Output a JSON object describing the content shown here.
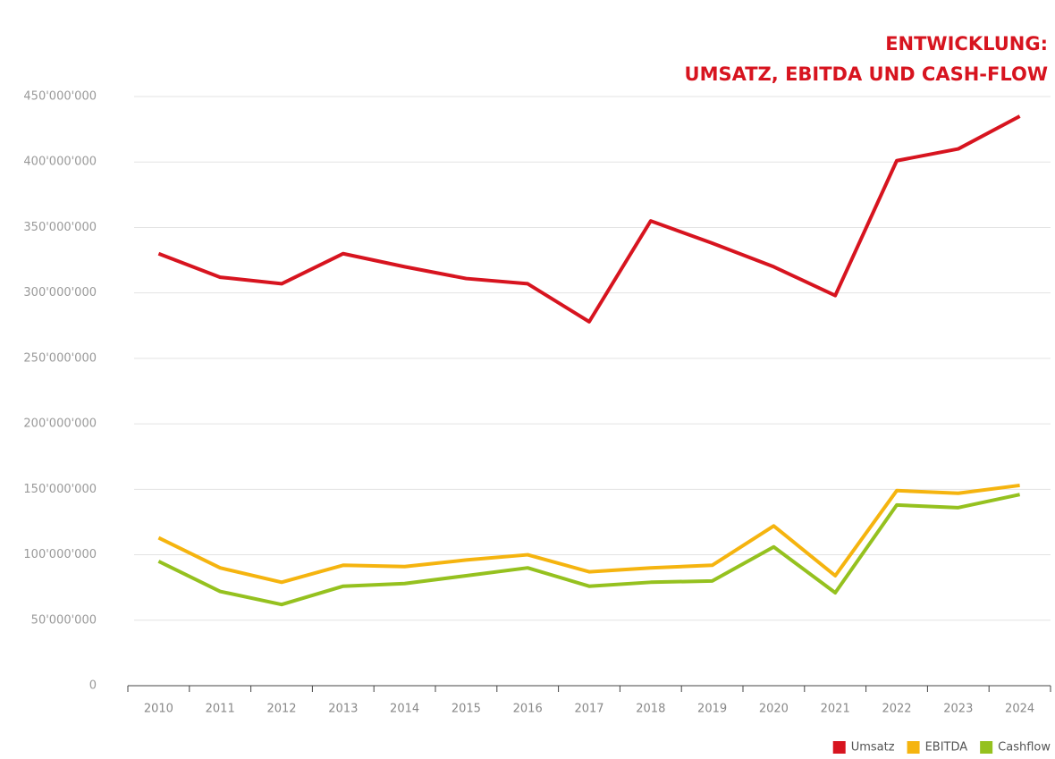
{
  "chart_data": {
    "type": "line",
    "title": [
      "ENTWICKLUNG:",
      "UMSATZ, EBITDA UND CASH-FLOW"
    ],
    "categories": [
      "2010",
      "2011",
      "2012",
      "2013",
      "2014",
      "2015",
      "2016",
      "2017",
      "2018",
      "2019",
      "2020",
      "2021",
      "2022",
      "2023",
      "2024"
    ],
    "series": [
      {
        "name": "Umsatz",
        "color": "#d7141f",
        "values": [
          330000000,
          312000000,
          307000000,
          330000000,
          320000000,
          311000000,
          307000000,
          278000000,
          355000000,
          338000000,
          320000000,
          298000000,
          401000000,
          410000000,
          435000000
        ]
      },
      {
        "name": "EBITDA",
        "color": "#f5b40f",
        "values": [
          113000000,
          90000000,
          79000000,
          92000000,
          91000000,
          96000000,
          100000000,
          87000000,
          90000000,
          92000000,
          122000000,
          84000000,
          149000000,
          147000000,
          153000000
        ]
      },
      {
        "name": "Cashflow",
        "color": "#95c11f",
        "values": [
          95000000,
          72000000,
          62000000,
          76000000,
          78000000,
          84000000,
          90000000,
          76000000,
          79000000,
          80000000,
          106000000,
          71000000,
          138000000,
          136000000,
          146000000
        ]
      }
    ],
    "ylim": [
      0,
      450000000
    ],
    "yticks": [
      0,
      {
        "value": 50000000,
        "label": "50'000'000"
      },
      {
        "value": 100000000,
        "label": "100'000'000"
      },
      {
        "value": 150000000,
        "label": "150'000'000"
      },
      {
        "value": 200000000,
        "label": "200'000'000"
      },
      {
        "value": 250000000,
        "label": "250'000'000"
      },
      {
        "value": 300000000,
        "label": "300'000'000"
      },
      {
        "value": 350000000,
        "label": "350'000'000"
      },
      {
        "value": 400000000,
        "label": "400'000'000"
      },
      {
        "value": 450000000,
        "label": "450'000'000"
      }
    ],
    "grid": true,
    "legend": "bottom-right"
  }
}
